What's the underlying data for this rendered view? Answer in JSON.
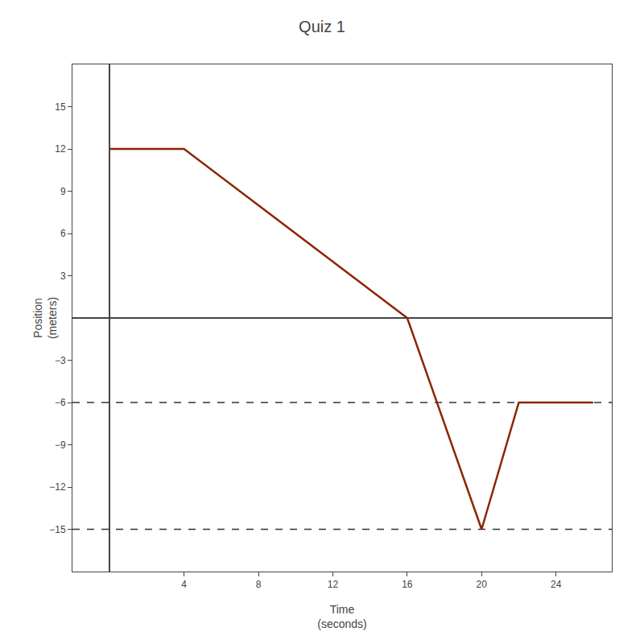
{
  "chart_data": {
    "type": "line",
    "title": "Quiz 1",
    "x": [
      0,
      4,
      16,
      20,
      22,
      26
    ],
    "values": [
      12,
      12,
      0,
      -15,
      -6,
      -6
    ],
    "color": "#8B2500",
    "hlines": [
      {
        "y": -6,
        "color": "#333333",
        "line_style": "dashed"
      },
      {
        "y": -15,
        "color": "#333333",
        "line_style": "dashed"
      }
    ],
    "xlabel": "Time\n(seconds)",
    "ylabel": "Position\n(meters)",
    "xlim": [
      -2,
      27
    ],
    "ylim": [
      -18,
      18
    ],
    "xticks": [
      4,
      8,
      12,
      16,
      20,
      24
    ],
    "yticks": [
      {
        "value": -15,
        "label": "−15"
      },
      {
        "value": -12,
        "label": "−12"
      },
      {
        "value": -9,
        "label": "−9"
      },
      {
        "value": -6,
        "label": "−6"
      },
      {
        "value": -3,
        "label": "−3"
      },
      3,
      6,
      9,
      12,
      15
    ],
    "grid": false
  }
}
